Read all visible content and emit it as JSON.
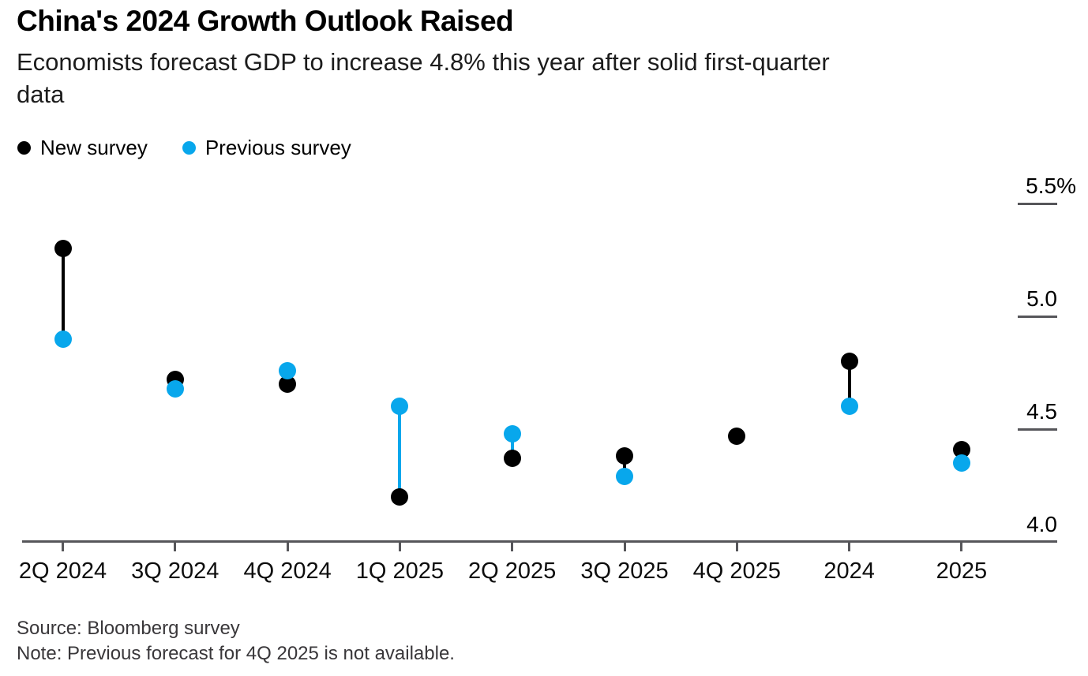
{
  "header": {
    "title": "China's 2024 Growth Outlook Raised",
    "subtitle_lines": [
      "Economists forecast GDP to increase 4.8% this year after solid first-quarter",
      "data"
    ]
  },
  "legend": {
    "items": [
      {
        "label": "New survey",
        "color": "#000000"
      },
      {
        "label": "Previous survey",
        "color": "#08a7ec"
      }
    ]
  },
  "chart_data": {
    "type": "scatter",
    "subtype": "dumbbell-dot-plot",
    "title": "China's 2024 Growth Outlook Raised",
    "unit": "%",
    "categories": [
      "2Q 2024",
      "3Q 2024",
      "4Q 2024",
      "1Q 2025",
      "2Q 2025",
      "3Q 2025",
      "4Q 2025",
      "2024",
      "2025"
    ],
    "series": [
      {
        "name": "New survey",
        "color": "#000000",
        "values": [
          5.3,
          4.72,
          4.7,
          4.2,
          4.37,
          4.38,
          4.47,
          4.8,
          4.41
        ]
      },
      {
        "name": "Previous survey",
        "color": "#08a7ec",
        "values": [
          4.9,
          4.68,
          4.76,
          4.6,
          4.48,
          4.29,
          null,
          4.6,
          4.35
        ]
      }
    ],
    "y_axis": {
      "side": "right",
      "ylim": [
        4.0,
        5.5
      ],
      "ticks": [
        {
          "label": "5.5%",
          "value": 5.5,
          "stub": true
        },
        {
          "label": "5.0",
          "value": 5.0,
          "stub": true
        },
        {
          "label": "4.5",
          "value": 4.5,
          "stub": true
        },
        {
          "label": "4.0",
          "value": 4.0,
          "stub": false
        }
      ]
    },
    "legend_position": "top-left",
    "grid": "right-edge stubs only",
    "connector_rule": "vertical line between the pair of points, colored like the higher-valued series",
    "missing_data_note": "Previous survey has no value for 4Q 2025"
  },
  "footer": {
    "source": "Source: Bloomberg survey",
    "note": "Note: Previous forecast for 4Q 2025 is not available."
  }
}
